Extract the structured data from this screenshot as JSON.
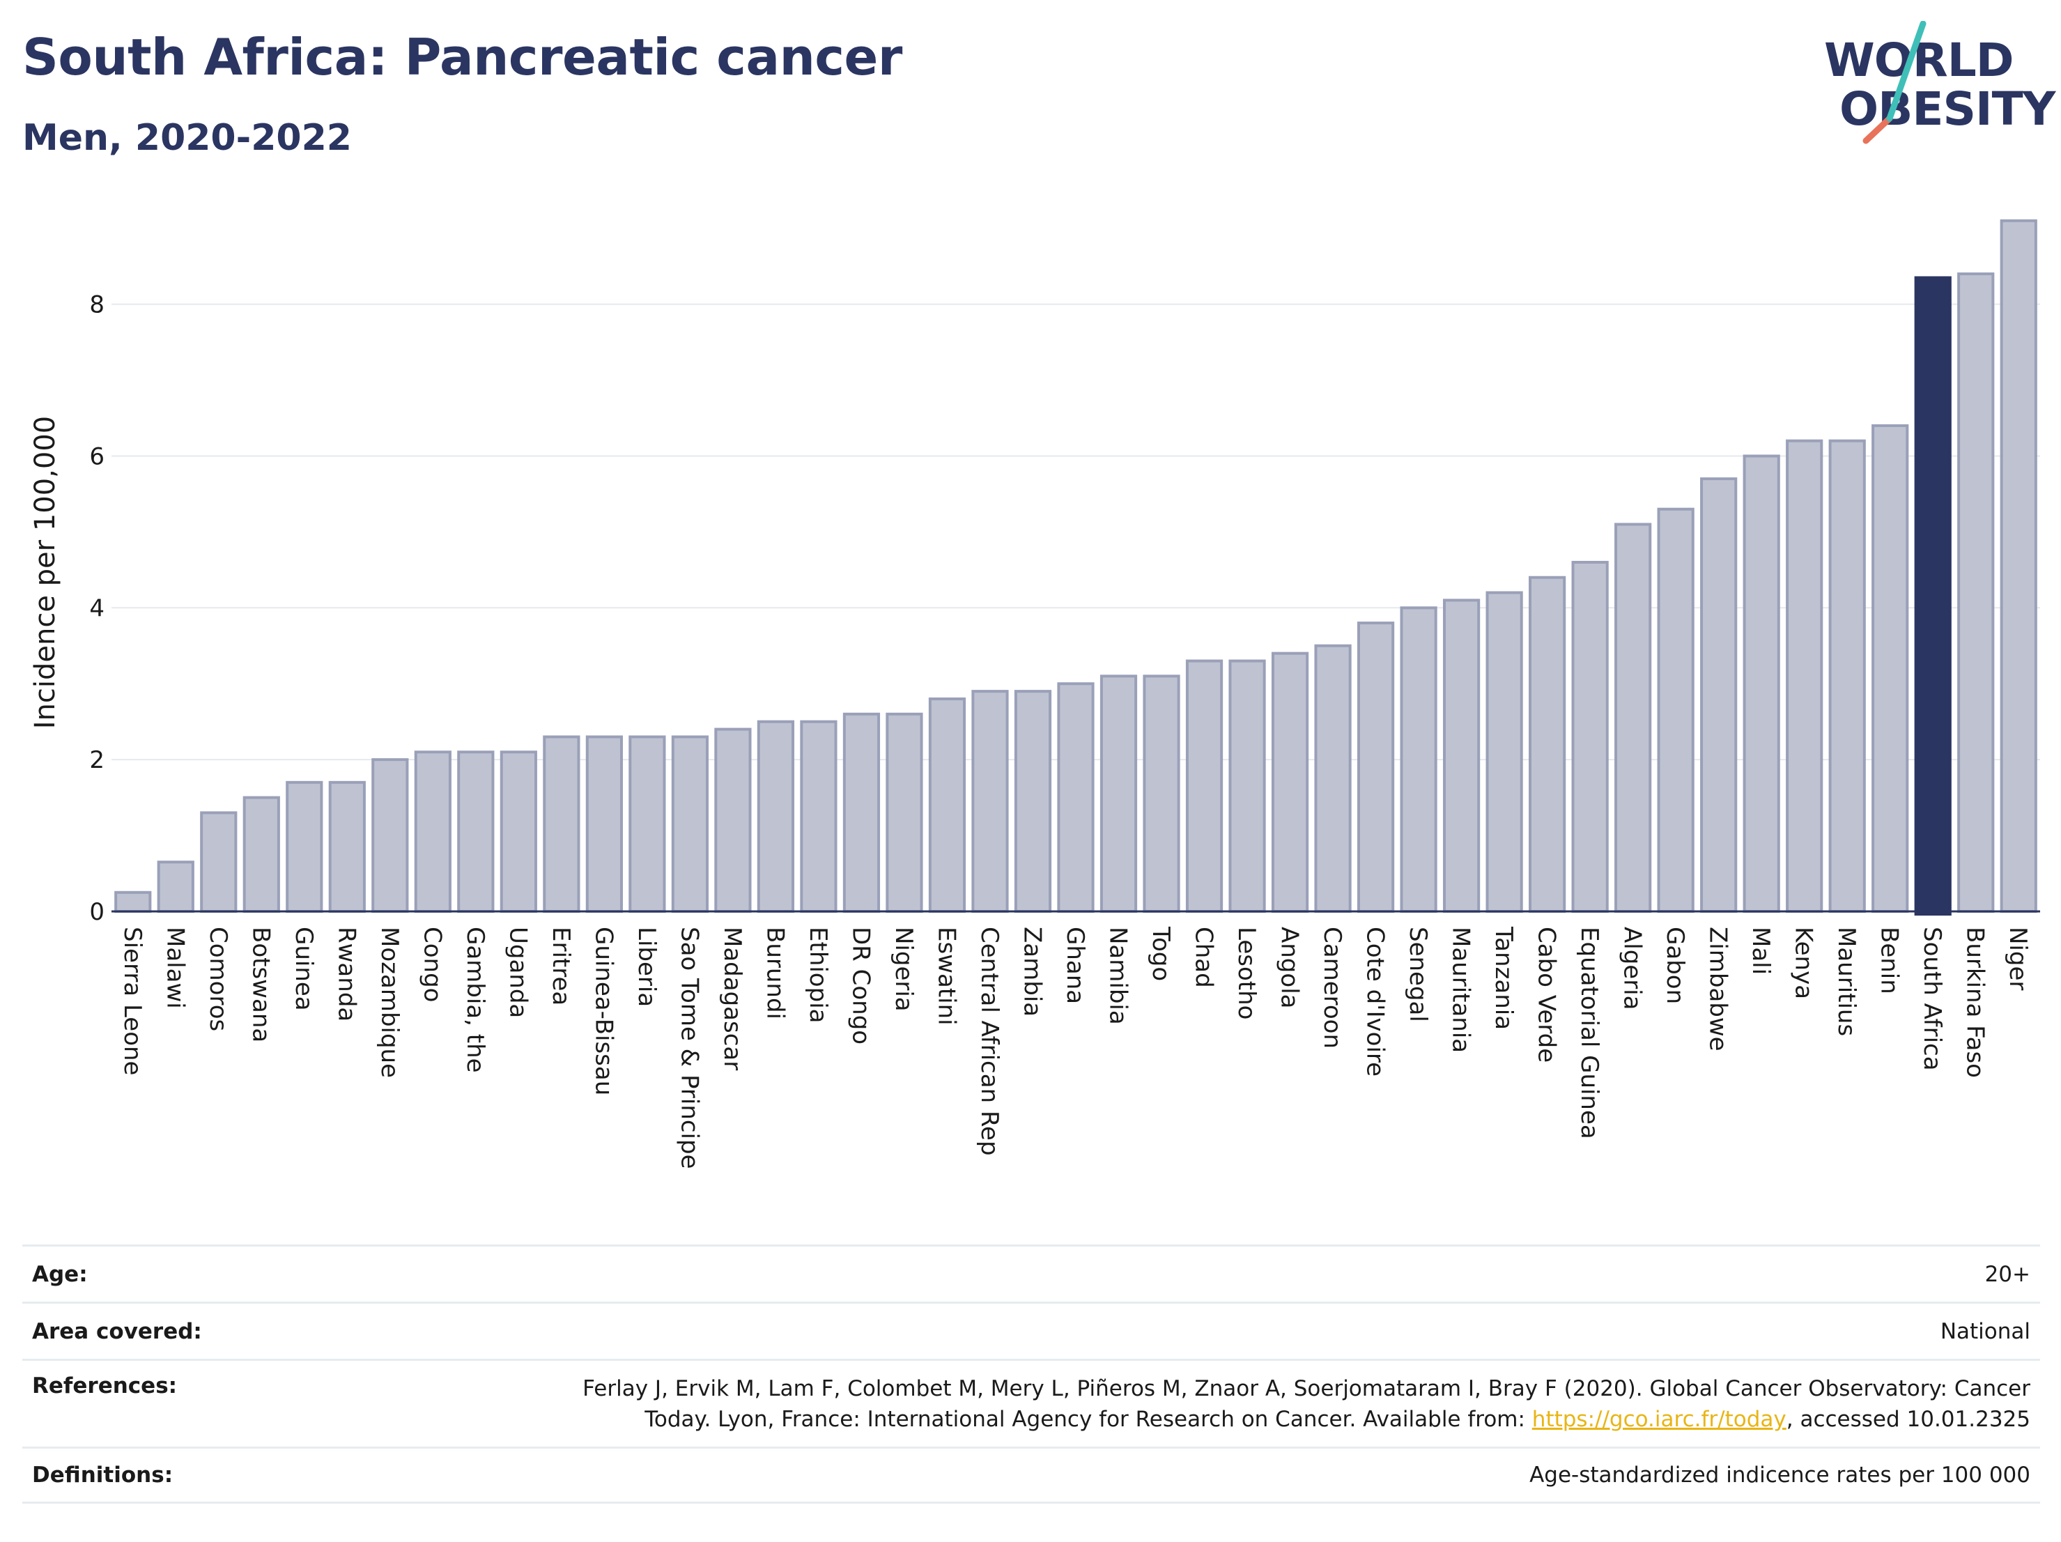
{
  "header": {
    "title": "South Africa: Pancreatic cancer",
    "subtitle": "Men, 2020-2022"
  },
  "logo": {
    "line1": "WORLD",
    "line2": "OBESITY",
    "accent_colors": [
      "#3fbfb8",
      "#e8735a"
    ]
  },
  "colors": {
    "bar_fill": "#bfc3d1",
    "bar_stroke": "#9aa0b8",
    "highlight": "#2b3561",
    "grid": "#e6e9ee",
    "axis": "#2b3561",
    "link": "#e8b516"
  },
  "chart_data": {
    "type": "bar",
    "title": "South Africa: Pancreatic cancer",
    "subtitle": "Men, 2020-2022",
    "xlabel": "",
    "ylabel": "Incidence per 100,000",
    "ylim": [
      0,
      9.3
    ],
    "yticks": [
      0,
      2,
      4,
      6,
      8
    ],
    "grid": true,
    "highlight": "South Africa",
    "categories": [
      "Sierra Leone",
      "Malawi",
      "Comoros",
      "Botswana",
      "Guinea",
      "Rwanda",
      "Mozambique",
      "Congo",
      "Gambia, the",
      "Uganda",
      "Eritrea",
      "Guinea-Bissau",
      "Liberia",
      "Sao Tome & Principe",
      "Madagascar",
      "Burundi",
      "Ethiopia",
      "DR Congo",
      "Nigeria",
      "Eswatini",
      "Central African Rep",
      "Zambia",
      "Ghana",
      "Namibia",
      "Togo",
      "Chad",
      "Lesotho",
      "Angola",
      "Cameroon",
      "Cote d'Ivoire",
      "Senegal",
      "Mauritania",
      "Tanzania",
      "Cabo Verde",
      "Equatorial Guinea",
      "Algeria",
      "Gabon",
      "Zimbabwe",
      "Mali",
      "Kenya",
      "Mauritius",
      "Benin",
      "South Africa",
      "Burkina Faso",
      "Niger"
    ],
    "values": [
      0.25,
      0.65,
      1.3,
      1.5,
      1.7,
      1.7,
      2.0,
      2.1,
      2.1,
      2.1,
      2.3,
      2.3,
      2.3,
      2.3,
      2.4,
      2.5,
      2.5,
      2.6,
      2.6,
      2.8,
      2.9,
      2.9,
      3.0,
      3.1,
      3.1,
      3.3,
      3.3,
      3.4,
      3.5,
      3.8,
      4.0,
      4.1,
      4.2,
      4.4,
      4.6,
      5.1,
      5.3,
      5.7,
      6.0,
      6.2,
      6.2,
      6.4,
      8.35,
      8.4,
      9.1
    ]
  },
  "metadata": [
    {
      "label": "Age:",
      "value": "20+"
    },
    {
      "label": "Area covered:",
      "value": "National"
    },
    {
      "label": "References:",
      "value_pre": "Ferlay J, Ervik M, Lam F, Colombet M, Mery L, Piñeros M, Znaor A, Soerjomataram I, Bray F (2020). Global Cancer Observatory: Cancer Today. Lyon, France: International Agency for Research on Cancer. Available from: ",
      "link": "https://gco.iarc.fr/today",
      "value_post": ", accessed 10.01.2325"
    },
    {
      "label": "Definitions:",
      "value": "Age-standardized indicence rates per 100 000"
    }
  ]
}
